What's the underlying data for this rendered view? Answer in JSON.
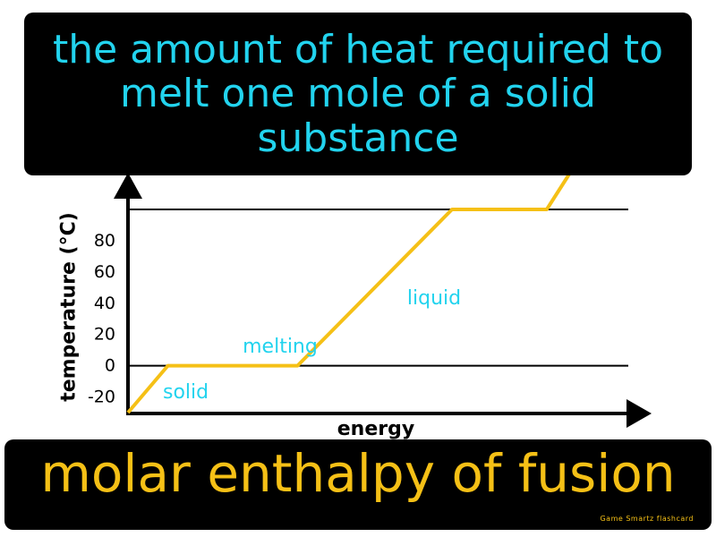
{
  "definition": "the amount of heat required to melt one mole of a solid substance",
  "term": "molar enthalpy of fusion",
  "brand": "Game Smartz flashcard",
  "colors": {
    "definition_text": "#22d3ee",
    "term_text": "#f5c016",
    "curve": "#f5c016",
    "phase_label": "#22d3ee",
    "box_background": "#000000"
  },
  "chart_data": {
    "type": "line",
    "xlabel": "energy",
    "ylabel": "temperature (°C)",
    "yticks": [
      -20,
      0,
      20,
      40,
      60,
      80
    ],
    "ylim": [
      -30,
      100
    ],
    "xlim": [
      0,
      100
    ],
    "gridlines_y": [
      0,
      100
    ],
    "series": [
      {
        "x": [
          0,
          8,
          34,
          65,
          84,
          100
        ],
        "y": [
          -30,
          0,
          0,
          100,
          100,
          180
        ]
      }
    ],
    "annotations": [
      {
        "text": "solid",
        "x": 7,
        "y": -17
      },
      {
        "text": "melting",
        "x": 23,
        "y": 12
      },
      {
        "text": "liquid",
        "x": 56,
        "y": 43
      }
    ]
  }
}
